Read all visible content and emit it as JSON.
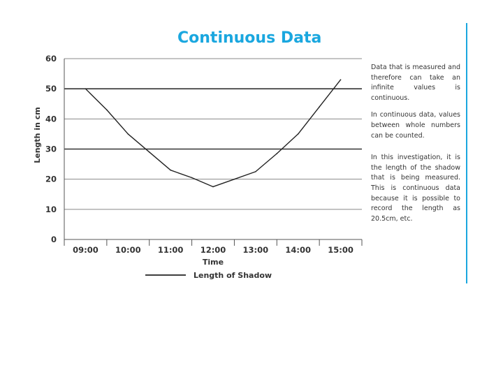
{
  "chart_data": {
    "type": "line",
    "title": "Continuous Data",
    "xlabel": "Time",
    "ylabel": "Length in cm",
    "categories": [
      "09:00",
      "10:00",
      "11:00",
      "12:00",
      "13:00",
      "14:00",
      "15:00"
    ],
    "x": [
      "09:00",
      "09:30",
      "10:00",
      "10:30",
      "11:00",
      "11:30",
      "12:00",
      "12:30",
      "13:00",
      "13:30",
      "14:00",
      "14:30",
      "15:00"
    ],
    "series": [
      {
        "name": "Length of Shadow",
        "values": [
          50,
          43,
          35,
          29,
          23,
          20.5,
          17.5,
          20,
          22.5,
          28.5,
          35,
          44,
          53
        ],
        "color": "#222222"
      }
    ],
    "ylim": [
      0,
      60
    ],
    "yticks": [
      0,
      10,
      20,
      30,
      40,
      50,
      60
    ],
    "grid": true,
    "legend": "bottom"
  },
  "side_text": [
    "Data that is measured and therefore can take an infinite values is continuous.",
    "In continuous data, values between whole numbers can be counted.",
    "In this investigation, it is the length of the shadow that is being measured. This is continuous data because it is possible to record the length as 20.5cm, etc."
  ],
  "accent_color": "#1aa7df"
}
